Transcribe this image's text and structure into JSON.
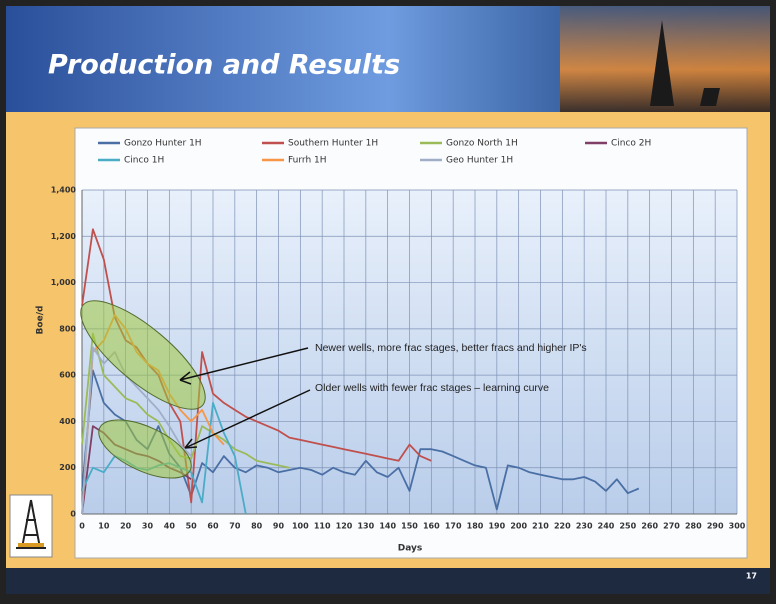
{
  "slide": {
    "title": "Production and Results",
    "page_number": "17"
  },
  "chart_data": {
    "type": "line",
    "x_label": "Days",
    "y_label": "Boe/d",
    "x": [
      0,
      5,
      10,
      15,
      20,
      25,
      30,
      35,
      40,
      45,
      50,
      55,
      60,
      65,
      70,
      75,
      80,
      85,
      90,
      95,
      100,
      105,
      110,
      115,
      120,
      125,
      130,
      135,
      140,
      145,
      150,
      155,
      160,
      165,
      170,
      175,
      180,
      185,
      190,
      195,
      200,
      205,
      210,
      215,
      220,
      225,
      230,
      235,
      240,
      245,
      250,
      255
    ],
    "xlim": [
      0,
      300
    ],
    "xticks": [
      0,
      10,
      20,
      30,
      40,
      50,
      60,
      70,
      80,
      90,
      100,
      110,
      120,
      130,
      140,
      150,
      160,
      170,
      180,
      190,
      200,
      210,
      220,
      230,
      240,
      250,
      260,
      270,
      280,
      290,
      300
    ],
    "ylim": [
      0,
      1400
    ],
    "yticks": [
      0,
      200,
      400,
      600,
      800,
      {
        "value": 1000,
        "label": "1,000"
      },
      {
        "value": 1200,
        "label": "1,200"
      },
      {
        "value": 1400,
        "label": "1,400"
      }
    ],
    "grid": true,
    "series": [
      {
        "name": "Gonzo Hunter 1H",
        "color": "#4a6fa5",
        "values": [
          100,
          620,
          480,
          430,
          400,
          320,
          280,
          380,
          260,
          200,
          80,
          220,
          180,
          250,
          200,
          180,
          210,
          200,
          180,
          190,
          200,
          190,
          170,
          200,
          180,
          170,
          230,
          180,
          160,
          200,
          100,
          280,
          280,
          270,
          250,
          230,
          210,
          200,
          20,
          210,
          200,
          180,
          170,
          160,
          150,
          150,
          160,
          140,
          100,
          150,
          90,
          110
        ]
      },
      {
        "name": "Southern Hunter 1H",
        "color": "#c0504d",
        "values": [
          900,
          1230,
          1100,
          850,
          750,
          720,
          650,
          600,
          480,
          400,
          50,
          700,
          520,
          480,
          450,
          420,
          400,
          380,
          360,
          330,
          320,
          310,
          300,
          290,
          280,
          270,
          260,
          250,
          240,
          230,
          300,
          250,
          230,
          null,
          null,
          null,
          null,
          null,
          null,
          null,
          null,
          null,
          null,
          null,
          null,
          null,
          null,
          null,
          null,
          null,
          null,
          null
        ]
      },
      {
        "name": "Gonzo North 1H",
        "color": "#9bbb59",
        "values": [
          300,
          780,
          600,
          550,
          500,
          480,
          430,
          400,
          320,
          250,
          240,
          380,
          350,
          320,
          280,
          260,
          230,
          220,
          210,
          200,
          null,
          null,
          null,
          null,
          null,
          null,
          null,
          null,
          null,
          null,
          null,
          null,
          null,
          null,
          null,
          null,
          null,
          null,
          null,
          null,
          null,
          null,
          null,
          null,
          null,
          null,
          null,
          null,
          null,
          null,
          null,
          null
        ]
      },
      {
        "name": "Cinco 2H",
        "color": "#7f3f67",
        "values": [
          0,
          380,
          350,
          300,
          280,
          260,
          250,
          230,
          200,
          180,
          150,
          null,
          null,
          null,
          null,
          null,
          null,
          null,
          null,
          null,
          null,
          null,
          null,
          null,
          null,
          null,
          null,
          null,
          null,
          null,
          null,
          null,
          null,
          null,
          null,
          null,
          null,
          null,
          null,
          null,
          null,
          null,
          null,
          null,
          null,
          null,
          null,
          null,
          null,
          null,
          null,
          null
        ]
      },
      {
        "name": "Cinco 1H",
        "color": "#4bacc6",
        "values": [
          100,
          200,
          180,
          250,
          230,
          200,
          190,
          210,
          220,
          200,
          180,
          50,
          480,
          350,
          250,
          0,
          null,
          null,
          null,
          null,
          null,
          null,
          null,
          null,
          null,
          null,
          null,
          null,
          null,
          null,
          null,
          null,
          null,
          null,
          null,
          null,
          null,
          null,
          null,
          null,
          null,
          null,
          null,
          null,
          null,
          null,
          null,
          null,
          null,
          null,
          null,
          null
        ]
      },
      {
        "name": "Furrh 1H",
        "color": "#f79646",
        "values": [
          0,
          700,
          750,
          860,
          800,
          700,
          650,
          620,
          520,
          450,
          400,
          450,
          350,
          300,
          null,
          null,
          null,
          null,
          null,
          null,
          null,
          null,
          null,
          null,
          null,
          null,
          null,
          null,
          null,
          null,
          null,
          null,
          null,
          null,
          null,
          null,
          null,
          null,
          null,
          null,
          null,
          null,
          null,
          null,
          null,
          null,
          null,
          null,
          null,
          null,
          null,
          null
        ]
      },
      {
        "name": "Geo Hunter 1H",
        "color": "#a0aec8",
        "values": [
          0,
          720,
          650,
          700,
          600,
          550,
          500,
          450,
          380,
          300,
          250,
          null,
          null,
          null,
          null,
          null,
          null,
          null,
          null,
          null,
          null,
          null,
          null,
          null,
          null,
          null,
          null,
          null,
          null,
          null,
          null,
          null,
          null,
          null,
          null,
          null,
          null,
          null,
          null,
          null,
          null,
          null,
          null,
          null,
          null,
          null,
          null,
          null,
          null,
          null,
          null,
          null
        ]
      }
    ],
    "annotations": [
      "Newer wells, more frac stages, better fracs and higher IP's",
      "Older wells with fewer frac stages – learning curve"
    ]
  }
}
